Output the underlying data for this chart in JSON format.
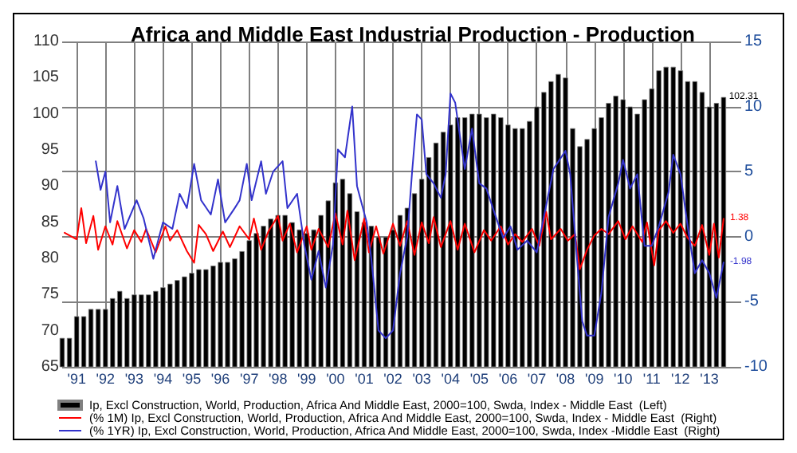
{
  "chart_data": {
    "type": "bar",
    "title": "Africa and Middle East Industrial Production - Production",
    "xlim": [
      "1990-07",
      "2013-09"
    ],
    "xticks": [
      {
        "value": "1991-01",
        "label": "'91"
      },
      {
        "value": "1992-01",
        "label": "'92"
      },
      {
        "value": "1993-01",
        "label": "'93"
      },
      {
        "value": "1994-01",
        "label": "'94"
      },
      {
        "value": "1995-01",
        "label": "'95"
      },
      {
        "value": "1996-01",
        "label": "'96"
      },
      {
        "value": "1997-01",
        "label": "'97"
      },
      {
        "value": "1998-01",
        "label": "'98"
      },
      {
        "value": "1999-01",
        "label": "'99"
      },
      {
        "value": "2000-01",
        "label": "'00"
      },
      {
        "value": "2001-01",
        "label": "'01"
      },
      {
        "value": "2002-01",
        "label": "'02"
      },
      {
        "value": "2003-01",
        "label": "'03"
      },
      {
        "value": "2004-01",
        "label": "'04"
      },
      {
        "value": "2005-01",
        "label": "'05"
      },
      {
        "value": "2006-01",
        "label": "'06"
      },
      {
        "value": "2007-01",
        "label": "'07"
      },
      {
        "value": "2008-01",
        "label": "'08"
      },
      {
        "value": "2009-01",
        "label": "'09"
      },
      {
        "value": "2010-01",
        "label": "'10"
      },
      {
        "value": "2011-01",
        "label": "'11"
      },
      {
        "value": "2012-01",
        "label": "'12"
      },
      {
        "value": "2013-01",
        "label": "'13"
      }
    ],
    "ylim": [
      65,
      110
    ],
    "yticks": [
      65,
      70,
      75,
      80,
      85,
      90,
      95,
      100,
      105,
      110
    ],
    "y2lim": [
      -10,
      15
    ],
    "y2ticks": [
      -10,
      -5,
      0,
      5,
      10,
      15
    ],
    "grid": true,
    "legend": "bottom",
    "series": [
      {
        "name": "Ip, Excl Construction, World, Production, Africa And Middle East, 2000=100, Swda, Index - Middle East  (Left)",
        "color": "#000000",
        "x": [
          "1990-07",
          "1990-10",
          "1991-01",
          "1991-04",
          "1991-07",
          "1991-10",
          "1992-01",
          "1992-04",
          "1992-07",
          "1992-10",
          "1993-01",
          "1993-04",
          "1993-07",
          "1993-10",
          "1994-01",
          "1994-04",
          "1994-07",
          "1994-10",
          "1995-01",
          "1995-04",
          "1995-07",
          "1995-10",
          "1996-01",
          "1996-04",
          "1996-07",
          "1996-10",
          "1997-01",
          "1997-04",
          "1997-07",
          "1997-10",
          "1998-01",
          "1998-04",
          "1998-07",
          "1998-10",
          "1999-01",
          "1999-04",
          "1999-07",
          "1999-10",
          "2000-01",
          "2000-04",
          "2000-07",
          "2000-10",
          "2001-01",
          "2001-04",
          "2001-07",
          "2001-10",
          "2002-01",
          "2002-04",
          "2002-07",
          "2002-10",
          "2003-01",
          "2003-04",
          "2003-07",
          "2003-10",
          "2004-01",
          "2004-04",
          "2004-07",
          "2004-10",
          "2005-01",
          "2005-04",
          "2005-07",
          "2005-10",
          "2006-01",
          "2006-04",
          "2006-07",
          "2006-10",
          "2007-01",
          "2007-04",
          "2007-07",
          "2007-10",
          "2008-01",
          "2008-04",
          "2008-07",
          "2008-10",
          "2009-01",
          "2009-04",
          "2009-07",
          "2009-10",
          "2010-01",
          "2010-04",
          "2010-07",
          "2010-10",
          "2011-01",
          "2011-04",
          "2011-07",
          "2011-10",
          "2012-01",
          "2012-04",
          "2012-07",
          "2012-10",
          "2013-01",
          "2013-04",
          "2013-07"
        ],
        "values": [
          69,
          69,
          72,
          72,
          73,
          73,
          73,
          74.5,
          75.5,
          74.5,
          75,
          75,
          75,
          75.5,
          76,
          76.5,
          77,
          77.5,
          78,
          78.5,
          78.5,
          79,
          79.5,
          79.5,
          80,
          81,
          82.5,
          83.5,
          84.5,
          85.5,
          86,
          86,
          85,
          84,
          83.5,
          84,
          86,
          88,
          90.5,
          91,
          89,
          86.5,
          85,
          84.5,
          83,
          83,
          84,
          86,
          87,
          89,
          91,
          94,
          96,
          97.5,
          98.5,
          99.5,
          99.5,
          100,
          100,
          99.5,
          100,
          99.5,
          98.5,
          98,
          98,
          99,
          101,
          103,
          104.5,
          105.5,
          105,
          98,
          95.5,
          96.5,
          98,
          99.5,
          101.5,
          102.5,
          102,
          101,
          100,
          102,
          103.5,
          106,
          106.5,
          106.5,
          106,
          104.5,
          104.5,
          103,
          101,
          101.5,
          102.31
        ],
        "value_labels": [
          null,
          null,
          null,
          null,
          null,
          null,
          null,
          null,
          null,
          null,
          null,
          null,
          null,
          null,
          null,
          null,
          null,
          null,
          null,
          null,
          null,
          null,
          null,
          null,
          null,
          null,
          null,
          null,
          null,
          null,
          null,
          null,
          null,
          null,
          null,
          null,
          null,
          null,
          null,
          null,
          null,
          null,
          null,
          null,
          null,
          null,
          null,
          null,
          null,
          null,
          null,
          null,
          null,
          null,
          null,
          null,
          null,
          null,
          null,
          null,
          null,
          null,
          null,
          null,
          null,
          null,
          null,
          null,
          null,
          null,
          null,
          null,
          null,
          null,
          null,
          null,
          null,
          null,
          null,
          null,
          null,
          null,
          null,
          null,
          null,
          null,
          null,
          null,
          null,
          null,
          null,
          null,
          "102.31"
        ]
      },
      {
        "name": "(% 1M) Ip, Excl Construction, World, Production, Africa And Middle East, 2000=100, Swda, Index - Middle East  (Right)",
        "type": "line",
        "axis": "y2",
        "color": "#ff0000",
        "x": [
          "1990-08",
          "1991-01",
          "1991-03",
          "1991-05",
          "1991-08",
          "1991-10",
          "1992-01",
          "1992-04",
          "1992-06",
          "1992-10",
          "1993-01",
          "1993-04",
          "1993-06",
          "1993-10",
          "1994-02",
          "1994-04",
          "1994-07",
          "1994-11",
          "1995-02",
          "1995-04",
          "1995-07",
          "1995-10",
          "1996-02",
          "1996-05",
          "1996-09",
          "1997-01",
          "1997-03",
          "1997-06",
          "1997-09",
          "1998-01",
          "1998-03",
          "1998-06",
          "1998-09",
          "1999-01",
          "1999-03",
          "1999-06",
          "1999-10",
          "2000-01",
          "2000-04",
          "2000-06",
          "2000-09",
          "2001-01",
          "2001-03",
          "2001-06",
          "2001-09",
          "2002-01",
          "2002-04",
          "2002-07",
          "2002-10",
          "2003-01",
          "2003-04",
          "2003-06",
          "2003-09",
          "2004-01",
          "2004-04",
          "2004-07",
          "2004-11",
          "2005-03",
          "2005-06",
          "2005-10",
          "2006-01",
          "2006-04",
          "2006-07",
          "2006-11",
          "2007-02",
          "2007-05",
          "2007-07",
          "2007-11",
          "2008-02",
          "2008-05",
          "2008-07",
          "2008-10",
          "2009-01",
          "2009-04",
          "2009-07",
          "2009-11",
          "2010-02",
          "2010-05",
          "2010-09",
          "2010-11",
          "2011-02",
          "2011-04",
          "2011-07",
          "2011-10",
          "2012-01",
          "2012-04",
          "2012-07",
          "2012-10",
          "2013-01",
          "2013-03",
          "2013-05",
          "2013-07"
        ],
        "values": [
          0.3,
          -0.2,
          2.2,
          -0.5,
          1.6,
          -1,
          0.8,
          -0.6,
          1.2,
          -0.9,
          0.5,
          -0.4,
          0.6,
          -1.2,
          0.8,
          -0.3,
          0.5,
          -1.1,
          -2,
          0.9,
          0.2,
          -1.1,
          0.4,
          -0.8,
          0.8,
          -0.2,
          1.4,
          -1,
          0.4,
          1.6,
          -0.3,
          1,
          -1.2,
          0.8,
          -1,
          0.6,
          -0.8,
          1.8,
          -0.6,
          2,
          -1.8,
          1.4,
          -1.2,
          0.8,
          -1.3,
          1,
          -0.7,
          1.2,
          -1.4,
          1.1,
          -0.5,
          1.5,
          -0.8,
          1.2,
          -1,
          1,
          -1.2,
          0.5,
          -0.3,
          0.8,
          -0.6,
          0.2,
          -0.4,
          0.6,
          -0.7,
          1.9,
          -0.2,
          0.6,
          -0.3,
          0.2,
          -2.5,
          -1,
          0.1,
          0.6,
          0.2,
          1.2,
          -0.2,
          0.8,
          -0.4,
          1.1,
          -2.2,
          0.5,
          1.2,
          0.3,
          1,
          -0.1,
          -0.7,
          0.9,
          -1.4,
          1,
          -1.6,
          1.38
        ],
        "value_labels": [
          null,
          null,
          null,
          null,
          null,
          null,
          null,
          null,
          null,
          null,
          null,
          null,
          null,
          null,
          null,
          null,
          null,
          null,
          null,
          null,
          null,
          null,
          null,
          null,
          null,
          null,
          null,
          null,
          null,
          null,
          null,
          null,
          null,
          null,
          null,
          null,
          null,
          null,
          null,
          null,
          null,
          null,
          null,
          null,
          null,
          null,
          null,
          null,
          null,
          null,
          null,
          null,
          null,
          null,
          null,
          null,
          null,
          null,
          null,
          null,
          null,
          null,
          null,
          null,
          null,
          null,
          null,
          null,
          null,
          null,
          null,
          null,
          null,
          null,
          null,
          null,
          null,
          null,
          null,
          null,
          null,
          null,
          null,
          null,
          null,
          null,
          null,
          null,
          null,
          null,
          null,
          "1.38"
        ]
      },
      {
        "name": "(% 1YR) Ip, Excl Construction, World, Production, Africa And Middle East, 2000=100, Swda, Index -Middle East  (Right)",
        "type": "line",
        "axis": "y2",
        "color": "#3333cc",
        "x": [
          "1991-09",
          "1991-11",
          "1992-01",
          "1992-03",
          "1992-06",
          "1992-09",
          "1993-02",
          "1993-05",
          "1993-09",
          "1994-01",
          "1994-05",
          "1994-08",
          "1994-11",
          "1995-02",
          "1995-05",
          "1995-09",
          "1995-12",
          "1996-03",
          "1996-07",
          "1996-09",
          "1996-12",
          "1997-02",
          "1997-06",
          "1997-08",
          "1997-11",
          "1998-03",
          "1998-05",
          "1998-09",
          "1998-12",
          "1999-03",
          "1999-06",
          "1999-09",
          "1999-12",
          "2000-02",
          "2000-05",
          "2000-08",
          "2000-10",
          "2001-02",
          "2001-04",
          "2001-07",
          "2001-10",
          "2002-01",
          "2002-04",
          "2002-07",
          "2002-09",
          "2002-11",
          "2003-01",
          "2003-03",
          "2003-06",
          "2003-09",
          "2003-11",
          "2004-01",
          "2004-03",
          "2004-05",
          "2004-07",
          "2004-10",
          "2005-01",
          "2005-04",
          "2005-08",
          "2005-11",
          "2006-02",
          "2006-05",
          "2006-09",
          "2007-01",
          "2007-04",
          "2007-08",
          "2008-01",
          "2008-03",
          "2008-06",
          "2008-08",
          "2008-10",
          "2009-01",
          "2009-04",
          "2009-07",
          "2009-11",
          "2010-01",
          "2010-04",
          "2010-07",
          "2010-10",
          "2011-01",
          "2011-04",
          "2011-08",
          "2011-10",
          "2012-01",
          "2012-04",
          "2012-07",
          "2012-10",
          "2013-01",
          "2013-04",
          "2013-07"
        ],
        "values": [
          5.8,
          3.6,
          5,
          1.1,
          3.9,
          0.6,
          2.8,
          1.4,
          -1.7,
          1.1,
          0.6,
          3.3,
          2.2,
          5.6,
          2.8,
          1.7,
          4.4,
          1.1,
          2.2,
          2.8,
          5.6,
          2.8,
          5.8,
          3.3,
          5,
          5.8,
          2.2,
          3.3,
          -0.6,
          -3.3,
          -1.1,
          -3.9,
          -0.6,
          6.7,
          6.1,
          10,
          3.9,
          1.1,
          -1.7,
          -7.2,
          -7.8,
          -7.2,
          -2.8,
          0,
          5,
          9.4,
          9,
          4.8,
          4.1,
          3,
          4.8,
          11,
          10.3,
          7.7,
          5.2,
          8.3,
          4.1,
          3.7,
          1.5,
          -0.1,
          0.8,
          -1,
          -0.3,
          -1.2,
          1.5,
          5.2,
          6.6,
          4.8,
          -2.1,
          -6.5,
          -7.6,
          -7.6,
          -4.3,
          1.5,
          4.1,
          5.9,
          3.7,
          4.8,
          -0.7,
          -0.7,
          0.8,
          3.4,
          6.3,
          4.8,
          0.8,
          -2.8,
          -1.8,
          -2.8,
          -4.7,
          -1.98
        ],
        "value_labels": [
          null,
          null,
          null,
          null,
          null,
          null,
          null,
          null,
          null,
          null,
          null,
          null,
          null,
          null,
          null,
          null,
          null,
          null,
          null,
          null,
          null,
          null,
          null,
          null,
          null,
          null,
          null,
          null,
          null,
          null,
          null,
          null,
          null,
          null,
          null,
          null,
          null,
          null,
          null,
          null,
          null,
          null,
          null,
          null,
          null,
          null,
          null,
          null,
          null,
          null,
          null,
          null,
          null,
          null,
          null,
          null,
          null,
          null,
          null,
          null,
          null,
          null,
          null,
          null,
          null,
          null,
          null,
          null,
          null,
          null,
          null,
          null,
          null,
          null,
          null,
          null,
          null,
          null,
          null,
          null,
          null,
          null,
          null,
          null,
          null,
          null,
          null,
          null,
          null,
          "-1.98"
        ]
      }
    ]
  }
}
